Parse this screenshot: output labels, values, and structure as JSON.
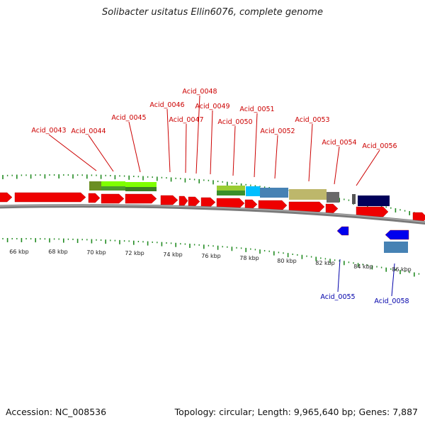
{
  "title": "Solibacter usitatus Ellin6076, complete genome",
  "accession_text": "Accession: NC_008536",
  "topology_text": "Topology: circular; Length: 9,965,640 bp; Genes: 7,887",
  "colors": {
    "forward_label": "#cc0000",
    "reverse_label": "#0000aa",
    "backbone": "#777777",
    "tick": "#228b22",
    "cds_forward": "#ee0000",
    "cds_reverse": "#0000ee"
  },
  "scale": {
    "ticks": [
      {
        "label": "66 kbp"
      },
      {
        "label": "68 kbp"
      },
      {
        "label": "70 kbp"
      },
      {
        "label": "72 kbp"
      },
      {
        "label": "74 kbp"
      },
      {
        "label": "76 kbp"
      },
      {
        "label": "78 kbp"
      },
      {
        "label": "80 kbp"
      },
      {
        "label": "82 kbp"
      },
      {
        "label": "84 kbp"
      },
      {
        "label": "86 kbp"
      }
    ]
  },
  "labels": {
    "forward": [
      "Acid_0043",
      "Acid_0044",
      "Acid_0045",
      "Acid_0046",
      "Acid_0047",
      "Acid_0048",
      "Acid_0049",
      "Acid_0050",
      "Acid_0051",
      "Acid_0052",
      "Acid_0053",
      "Acid_0054",
      "Acid_0056"
    ],
    "reverse": [
      "Acid_0055",
      "Acid_0058"
    ]
  }
}
